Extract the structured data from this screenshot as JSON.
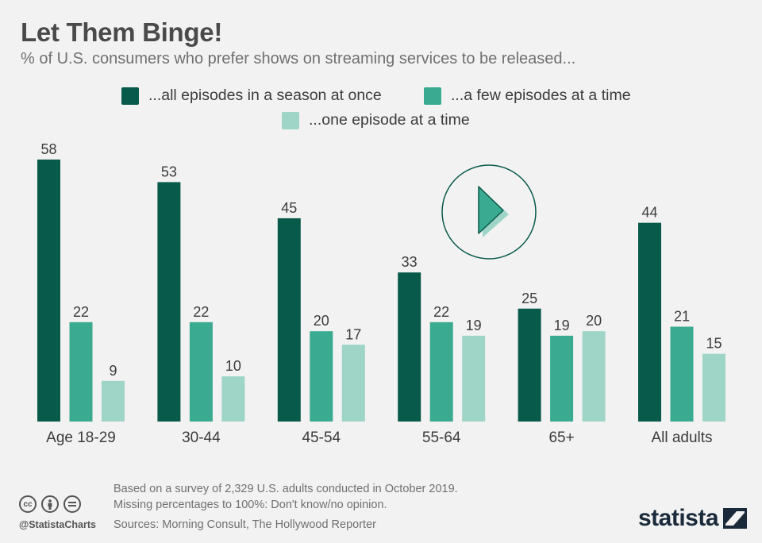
{
  "header": {
    "title": "Let Them Binge!",
    "subtitle": "% of U.S. consumers who prefer shows on streaming services to be released..."
  },
  "colors": {
    "series_dark": "#085a4a",
    "series_mid": "#3aaa90",
    "series_light": "#9ed5c7",
    "play_icon": "#085a4a"
  },
  "chart_data": {
    "type": "bar",
    "categories": [
      "Age 18-29",
      "30-44",
      "45-54",
      "55-64",
      "65+",
      "All adults"
    ],
    "series": [
      {
        "name": "...all episodes in a season at once",
        "values": [
          58,
          53,
          45,
          33,
          25,
          44
        ]
      },
      {
        "name": "...a few episodes at a time",
        "values": [
          22,
          22,
          20,
          22,
          19,
          21
        ]
      },
      {
        "name": "...one episode at a time",
        "values": [
          9,
          10,
          17,
          19,
          20,
          15
        ]
      }
    ],
    "ylim": [
      0,
      60
    ],
    "grid": false,
    "legend_position": "top",
    "data_labels": true
  },
  "footer": {
    "notes": [
      "Based on a survey of 2,329 U.S. adults conducted in October 2019.",
      "Missing percentages to 100%: Don't know/no opinion.",
      "Sources: Morning Consult, The Hollywood Reporter"
    ],
    "handle": "@StatistaCharts",
    "brand": "statista",
    "icons": [
      "creative-commons-icon",
      "attribution-icon",
      "no-derivatives-icon"
    ]
  }
}
